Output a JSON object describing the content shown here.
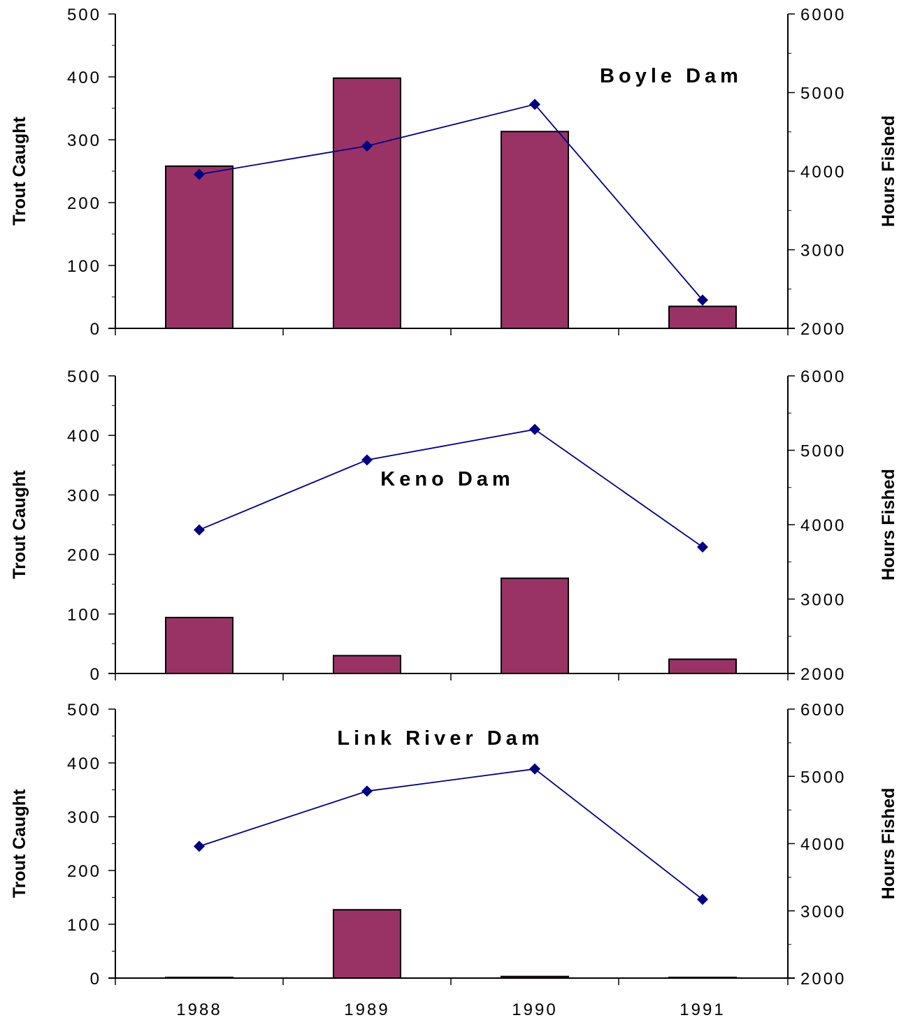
{
  "chart_data": [
    {
      "type": "bar+line",
      "title": "Boyle Dam",
      "categories": [
        "1988",
        "1989",
        "1990",
        "1991"
      ],
      "ylabel": "Trout Caught",
      "y2label": "Hours Fished",
      "ylim": [
        0,
        500
      ],
      "y2lim": [
        2000,
        6000
      ],
      "yticks": [
        "0",
        "100",
        "200",
        "300",
        "400",
        "500"
      ],
      "y2ticks": [
        "2000",
        "3000",
        "4000",
        "5000",
        "6000"
      ],
      "xtick_labels_shown": false,
      "series": [
        {
          "kind": "bar",
          "axis": "left",
          "color": "#993366",
          "values": [
            258,
            398,
            313,
            35
          ]
        },
        {
          "kind": "line",
          "axis": "right",
          "color": "#000080",
          "marker": "diamond",
          "values": [
            3960,
            4320,
            4850,
            2360
          ]
        }
      ]
    },
    {
      "type": "bar+line",
      "title": "Keno Dam",
      "categories": [
        "1988",
        "1989",
        "1990",
        "1991"
      ],
      "ylabel": "Trout Caught",
      "y2label": "Hours Fished",
      "ylim": [
        0,
        500
      ],
      "y2lim": [
        2000,
        6000
      ],
      "yticks": [
        "0",
        "100",
        "200",
        "300",
        "400",
        "500"
      ],
      "y2ticks": [
        "2000",
        "3000",
        "4000",
        "5000",
        "6000"
      ],
      "xtick_labels_shown": false,
      "series": [
        {
          "kind": "bar",
          "axis": "left",
          "color": "#993366",
          "values": [
            94,
            30,
            160,
            24
          ]
        },
        {
          "kind": "line",
          "axis": "right",
          "color": "#000080",
          "marker": "diamond",
          "values": [
            3930,
            4870,
            5280,
            3700
          ]
        }
      ]
    },
    {
      "type": "bar+line",
      "title": "Link River Dam",
      "categories": [
        "1988",
        "1989",
        "1990",
        "1991"
      ],
      "ylabel": "Trout Caught",
      "y2label": "Hours Fished",
      "ylim": [
        0,
        500
      ],
      "y2lim": [
        2000,
        6000
      ],
      "yticks": [
        "0",
        "100",
        "200",
        "300",
        "400",
        "500"
      ],
      "y2ticks": [
        "2000",
        "3000",
        "4000",
        "5000",
        "6000"
      ],
      "xtick_labels_shown": true,
      "series": [
        {
          "kind": "bar",
          "axis": "left",
          "color": "#993366",
          "values": [
            1,
            127,
            3,
            0
          ]
        },
        {
          "kind": "line",
          "axis": "right",
          "color": "#000080",
          "marker": "diamond",
          "values": [
            3960,
            4780,
            5110,
            3170
          ]
        }
      ]
    }
  ]
}
